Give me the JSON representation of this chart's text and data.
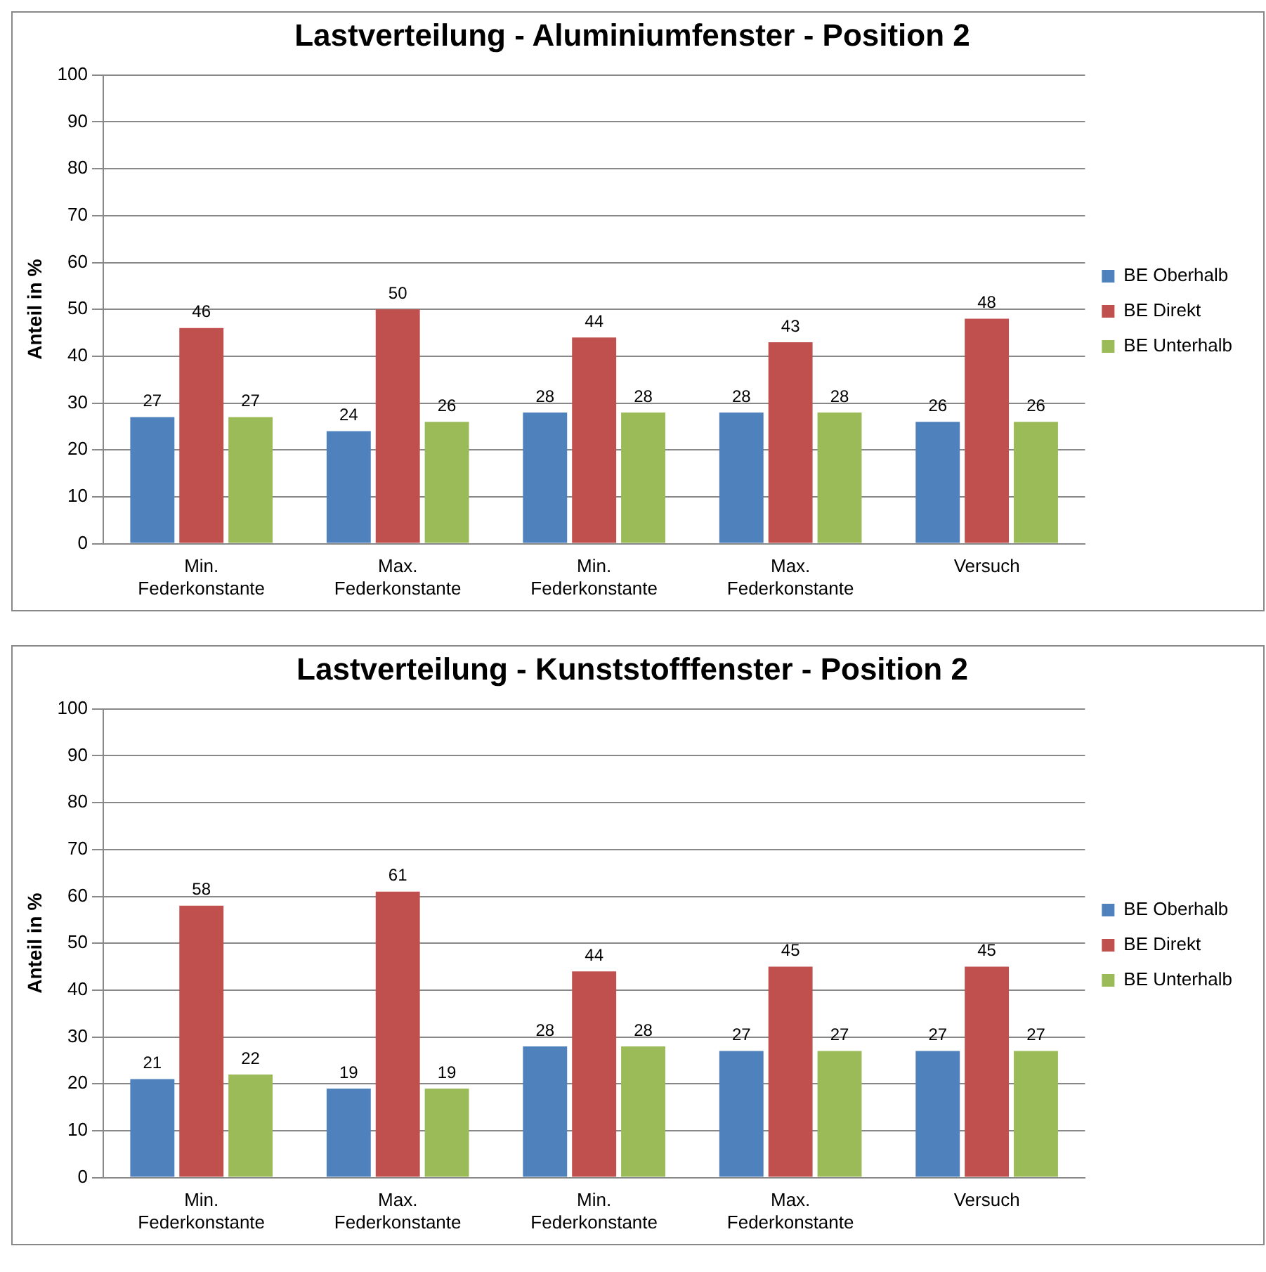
{
  "chart_data": [
    {
      "type": "bar",
      "title": "Lastverteilung - Aluminiumfenster - Position 2",
      "ylabel": "Anteil in %",
      "categories": [
        "Min. Federkonstante",
        "Max. Federkonstante",
        "Min. Federkonstante",
        "Max. Federkonstante",
        "Versuch"
      ],
      "series": [
        {
          "name": "BE Oberhalb",
          "color": "#4f81bd",
          "values": [
            27,
            24,
            28,
            28,
            26
          ]
        },
        {
          "name": "BE Direkt",
          "color": "#c0504d",
          "values": [
            46,
            50,
            44,
            43,
            48
          ]
        },
        {
          "name": "BE Unterhalb",
          "color": "#9bbb59",
          "values": [
            27,
            26,
            28,
            28,
            26
          ]
        }
      ],
      "ylim": [
        0,
        100
      ],
      "yticks": [
        0,
        10,
        20,
        30,
        40,
        50,
        60,
        70,
        80,
        90,
        100
      ],
      "grid": "y",
      "legend": "right",
      "data_labels": true
    },
    {
      "type": "bar",
      "title": "Lastverteilung - Kunststofffenster - Position 2",
      "ylabel": "Anteil in %",
      "categories": [
        "Min. Federkonstante",
        "Max. Federkonstante",
        "Min. Federkonstante",
        "Max. Federkonstante",
        "Versuch"
      ],
      "series": [
        {
          "name": "BE Oberhalb",
          "color": "#4f81bd",
          "values": [
            21,
            19,
            28,
            27,
            27
          ]
        },
        {
          "name": "BE Direkt",
          "color": "#c0504d",
          "values": [
            58,
            61,
            44,
            45,
            45
          ]
        },
        {
          "name": "BE Unterhalb",
          "color": "#9bbb59",
          "values": [
            22,
            19,
            28,
            27,
            27
          ]
        }
      ],
      "ylim": [
        0,
        100
      ],
      "yticks": [
        0,
        10,
        20,
        30,
        40,
        50,
        60,
        70,
        80,
        90,
        100
      ],
      "grid": "y",
      "legend": "right",
      "data_labels": true
    }
  ]
}
